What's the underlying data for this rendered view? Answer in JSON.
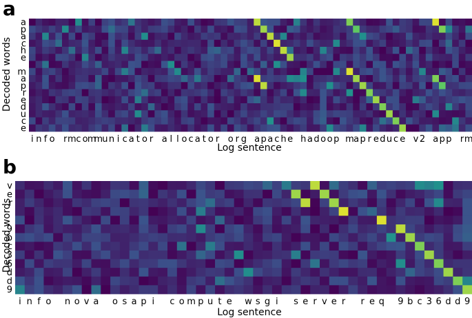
{
  "chart_data": [
    {
      "type": "heatmap",
      "panel": "a",
      "xlabel": "Log sentence",
      "ylabel": "Decoded words",
      "x_tokens": [
        "i",
        "n",
        "f",
        "o",
        " ",
        "r",
        "m",
        "c",
        "o",
        "m",
        "m",
        "u",
        "n",
        "i",
        "c",
        "a",
        "t",
        "o",
        "r",
        " ",
        "a",
        "l",
        "l",
        "o",
        "c",
        "a",
        "t",
        "o",
        "r",
        " ",
        "o",
        "r",
        "g",
        " ",
        "a",
        "p",
        "a",
        "c",
        "h",
        "e",
        " ",
        "h",
        "a",
        "d",
        "o",
        "o",
        "p",
        " ",
        "m",
        "a",
        "p",
        "r",
        "e",
        "d",
        "u",
        "c",
        "e",
        " ",
        "v",
        "2",
        " ",
        "a",
        "p",
        "p",
        " ",
        "r",
        "m"
      ],
      "y_tokens": [
        "a",
        "p",
        "a",
        "c",
        "h",
        "e",
        "",
        "m",
        "a",
        "p",
        "r",
        "e",
        "d",
        "u",
        "c",
        "e"
      ],
      "colormap": [
        "#440154",
        "#3b528b",
        "#21918c",
        "#5ec962",
        "#fde725"
      ],
      "highlights": [
        {
          "row": 0,
          "col": 34,
          "value": 0.9
        },
        {
          "row": 0,
          "col": 48,
          "value": 0.8
        },
        {
          "row": 0,
          "col": 61,
          "value": 0.95
        },
        {
          "row": 1,
          "col": 35,
          "value": 0.85
        },
        {
          "row": 1,
          "col": 49,
          "value": 0.75
        },
        {
          "row": 1,
          "col": 62,
          "value": 0.8
        },
        {
          "row": 2,
          "col": 36,
          "value": 0.9
        },
        {
          "row": 3,
          "col": 37,
          "value": 0.95
        },
        {
          "row": 4,
          "col": 38,
          "value": 0.9
        },
        {
          "row": 5,
          "col": 39,
          "value": 0.85
        },
        {
          "row": 7,
          "col": 48,
          "value": 0.95
        },
        {
          "row": 8,
          "col": 34,
          "value": 0.95
        },
        {
          "row": 8,
          "col": 49,
          "value": 0.85
        },
        {
          "row": 8,
          "col": 61,
          "value": 0.8
        },
        {
          "row": 9,
          "col": 35,
          "value": 0.9
        },
        {
          "row": 9,
          "col": 50,
          "value": 0.85
        },
        {
          "row": 9,
          "col": 62,
          "value": 0.75
        },
        {
          "row": 10,
          "col": 51,
          "value": 0.8
        },
        {
          "row": 11,
          "col": 52,
          "value": 0.85
        },
        {
          "row": 12,
          "col": 53,
          "value": 0.8
        },
        {
          "row": 13,
          "col": 54,
          "value": 0.85
        },
        {
          "row": 14,
          "col": 55,
          "value": 0.8
        },
        {
          "row": 15,
          "col": 56,
          "value": 0.85
        }
      ]
    },
    {
      "type": "heatmap",
      "panel": "b",
      "xlabel": "Log sentence",
      "ylabel": "Decoded words",
      "x_tokens": [
        "i",
        "n",
        "f",
        "o",
        " ",
        "n",
        "o",
        "v",
        "a",
        " ",
        "o",
        "s",
        "a",
        "p",
        "i",
        " ",
        "c",
        "o",
        "m",
        "p",
        "u",
        "t",
        "e",
        " ",
        "w",
        "s",
        "g",
        "i",
        " ",
        "s",
        "e",
        "r",
        "v",
        "e",
        "r",
        " ",
        "r",
        "e",
        "q",
        " ",
        "9",
        "b",
        "c",
        "3",
        "6",
        "d",
        "d",
        "9"
      ],
      "y_tokens": [
        "v",
        "e",
        "r",
        "",
        "",
        "9",
        "b",
        "c",
        "3",
        "6",
        "d",
        "d",
        "9"
      ],
      "colormap": [
        "#440154",
        "#3b528b",
        "#21918c",
        "#5ec962",
        "#fde725"
      ],
      "highlights": [
        {
          "row": 0,
          "col": 31,
          "value": 0.9
        },
        {
          "row": 1,
          "col": 32,
          "value": 0.85
        },
        {
          "row": 1,
          "col": 29,
          "value": 0.85
        },
        {
          "row": 2,
          "col": 30,
          "value": 0.9
        },
        {
          "row": 2,
          "col": 33,
          "value": 0.85
        },
        {
          "row": 3,
          "col": 34,
          "value": 0.95
        },
        {
          "row": 4,
          "col": 38,
          "value": 0.95
        },
        {
          "row": 5,
          "col": 40,
          "value": 0.9
        },
        {
          "row": 6,
          "col": 41,
          "value": 0.85
        },
        {
          "row": 7,
          "col": 42,
          "value": 0.8
        },
        {
          "row": 8,
          "col": 43,
          "value": 0.85
        },
        {
          "row": 9,
          "col": 44,
          "value": 0.8
        },
        {
          "row": 10,
          "col": 45,
          "value": 0.85
        },
        {
          "row": 11,
          "col": 46,
          "value": 0.8
        },
        {
          "row": 12,
          "col": 47,
          "value": 0.85
        }
      ]
    }
  ]
}
